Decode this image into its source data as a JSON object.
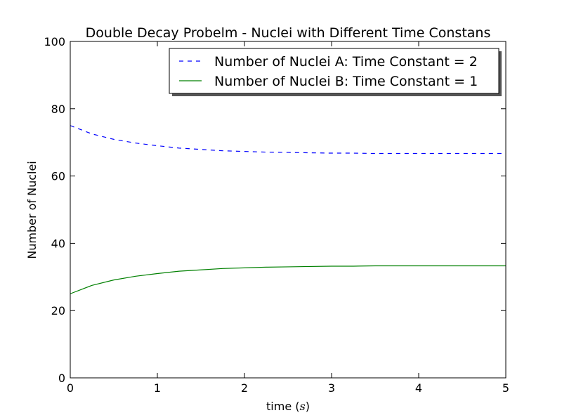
{
  "chart_data": {
    "type": "line",
    "title": "Double Decay Probelm - Nuclei with Different Time Constans",
    "xlabel_prefix": "time (",
    "xlabel_var": "s",
    "xlabel_suffix": ")",
    "ylabel": "Number of Nuclei",
    "xlim": [
      0,
      5
    ],
    "ylim": [
      0,
      100
    ],
    "xticks": [
      "0",
      "1",
      "2",
      "3",
      "4",
      "5"
    ],
    "yticks": [
      "0",
      "20",
      "40",
      "60",
      "80",
      "100"
    ],
    "grid": false,
    "legend_position": "top-right",
    "x": [
      0,
      0.25,
      0.5,
      0.75,
      1,
      1.25,
      1.5,
      1.75,
      2,
      2.25,
      2.5,
      2.75,
      3,
      3.25,
      3.5,
      3.75,
      4,
      4.25,
      4.5,
      4.75,
      5
    ],
    "series": [
      {
        "name": "Number of Nuclei A: Time Constant = 2",
        "color": "#0000ff",
        "line_style": "dashed",
        "values": [
          75.0,
          72.5,
          70.9,
          69.8,
          69.0,
          68.3,
          67.9,
          67.5,
          67.3,
          67.1,
          67.0,
          66.9,
          66.8,
          66.8,
          66.7,
          66.7,
          66.7,
          66.7,
          66.7,
          66.7,
          66.7
        ]
      },
      {
        "name": "Number of Nuclei B: Time Constant = 1",
        "color": "#008000",
        "line_style": "solid",
        "values": [
          25.0,
          27.5,
          29.1,
          30.2,
          31.0,
          31.7,
          32.1,
          32.5,
          32.7,
          32.9,
          33.0,
          33.1,
          33.2,
          33.2,
          33.3,
          33.3,
          33.3,
          33.3,
          33.3,
          33.3,
          33.3
        ]
      }
    ]
  }
}
